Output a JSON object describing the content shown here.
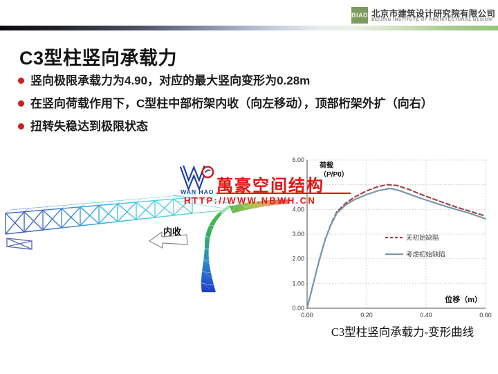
{
  "header": {
    "logo_text": "BIAD",
    "company_cn": "北京市建筑设计研究院有限公司",
    "company_en": "BEIJING INSTITUTE OF ARCHITECTURAL DESIGN",
    "logo_color": "#7d9b5e"
  },
  "slide": {
    "title": "C3型柱竖向承载力",
    "bullets": [
      "竖向极限承载力为4.90，对应的最大竖向变形为0.28m",
      "在竖向荷载作用下，C型柱中部桁架内收（向左移动），顶部桁架外扩（向右）",
      "扭转失稳达到极限状态"
    ],
    "bullet_color": "#cc1f1f"
  },
  "model": {
    "arrow_label": "内收",
    "colors": {
      "truss_start": "#4565c2",
      "truss_end": "#52d4de",
      "column_top": "#3fbf3f",
      "column_bottom": "#1430c8",
      "arm_tip": "#d44040"
    }
  },
  "watermark": {
    "logo_main": "WAN HAO",
    "brand": "萬豪空间结构",
    "url": "HTTP://WWW.NBWH.CN",
    "color": "#e41414"
  },
  "chart_data": {
    "type": "line",
    "title": "",
    "ylabel_lines": [
      "荷载",
      "（P/P0）"
    ],
    "xlabel": "位移（m）",
    "xlim": [
      0,
      0.6
    ],
    "ylim": [
      0,
      6
    ],
    "xticks": [
      "0.00",
      "0.20",
      "0.40",
      "0.60"
    ],
    "yticks": [
      "0.00",
      "1.00",
      "2.00",
      "3.00",
      "4.00",
      "5.00",
      "6.00"
    ],
    "grid": true,
    "legend_position": "center-right",
    "series": [
      {
        "name": "无初始缺陷",
        "style": "dashed",
        "color": "#9b4a44",
        "points": [
          [
            0,
            0
          ],
          [
            0.02,
            0.95
          ],
          [
            0.04,
            1.9
          ],
          [
            0.06,
            2.75
          ],
          [
            0.08,
            3.4
          ],
          [
            0.1,
            3.9
          ],
          [
            0.13,
            4.25
          ],
          [
            0.16,
            4.5
          ],
          [
            0.2,
            4.75
          ],
          [
            0.24,
            4.93
          ],
          [
            0.27,
            5.0
          ],
          [
            0.3,
            4.97
          ],
          [
            0.34,
            4.82
          ],
          [
            0.38,
            4.62
          ],
          [
            0.42,
            4.44
          ],
          [
            0.46,
            4.27
          ],
          [
            0.5,
            4.1
          ],
          [
            0.54,
            3.95
          ],
          [
            0.57,
            3.84
          ],
          [
            0.6,
            3.73
          ]
        ]
      },
      {
        "name": "考虑初始缺陷",
        "style": "solid",
        "color": "#7d97ae",
        "points": [
          [
            0,
            0
          ],
          [
            0.02,
            0.95
          ],
          [
            0.04,
            1.9
          ],
          [
            0.06,
            2.75
          ],
          [
            0.08,
            3.37
          ],
          [
            0.1,
            3.85
          ],
          [
            0.13,
            4.18
          ],
          [
            0.16,
            4.4
          ],
          [
            0.2,
            4.6
          ],
          [
            0.24,
            4.76
          ],
          [
            0.28,
            4.85
          ],
          [
            0.31,
            4.76
          ],
          [
            0.35,
            4.59
          ],
          [
            0.39,
            4.42
          ],
          [
            0.43,
            4.26
          ],
          [
            0.47,
            4.11
          ],
          [
            0.51,
            3.97
          ],
          [
            0.55,
            3.83
          ],
          [
            0.6,
            3.62
          ]
        ]
      }
    ]
  },
  "caption": "C3型柱竖向承载力-变形曲线"
}
